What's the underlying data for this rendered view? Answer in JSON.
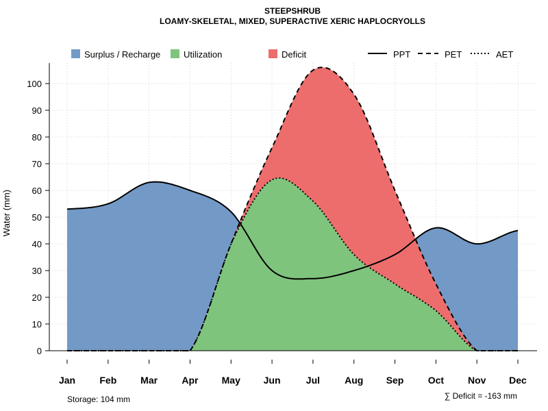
{
  "chart_data": {
    "type": "area",
    "title": "STEEPSHRUB",
    "subtitle": "LOAMY-SKELETAL, MIXED, SUPERACTIVE XERIC HAPLOCRYOLLS",
    "xlabel": "",
    "ylabel": "Water (mm)",
    "ylim": [
      0,
      108
    ],
    "yticks": [
      0,
      10,
      20,
      30,
      40,
      50,
      60,
      70,
      80,
      90,
      100
    ],
    "categories": [
      "Jan",
      "Feb",
      "Mar",
      "Apr",
      "May",
      "Jun",
      "Jul",
      "Aug",
      "Sep",
      "Oct",
      "Nov",
      "Dec"
    ],
    "grid": true,
    "legend_position": "top",
    "series": [
      {
        "name": "PPT",
        "style": "solid",
        "values": [
          53,
          55,
          63,
          60,
          52,
          30,
          27,
          30,
          36,
          46,
          40,
          45
        ]
      },
      {
        "name": "PET",
        "style": "dashed",
        "values": [
          0,
          0,
          0,
          0,
          40,
          76,
          105,
          96,
          60,
          25,
          0,
          0
        ]
      },
      {
        "name": "AET",
        "style": "dotted",
        "values": [
          0,
          0,
          0,
          0,
          40,
          64,
          56,
          36,
          25,
          15,
          0,
          0
        ]
      }
    ],
    "areas": [
      {
        "name": "Surplus / Recharge",
        "color": "#7399c6"
      },
      {
        "name": "Utilization",
        "color": "#7fc47c"
      },
      {
        "name": "Deficit",
        "color": "#ed6d6d"
      }
    ],
    "annotations": {
      "storage": "Storage: 104 mm",
      "deficit": "∑ Deficit = -163 mm"
    }
  }
}
